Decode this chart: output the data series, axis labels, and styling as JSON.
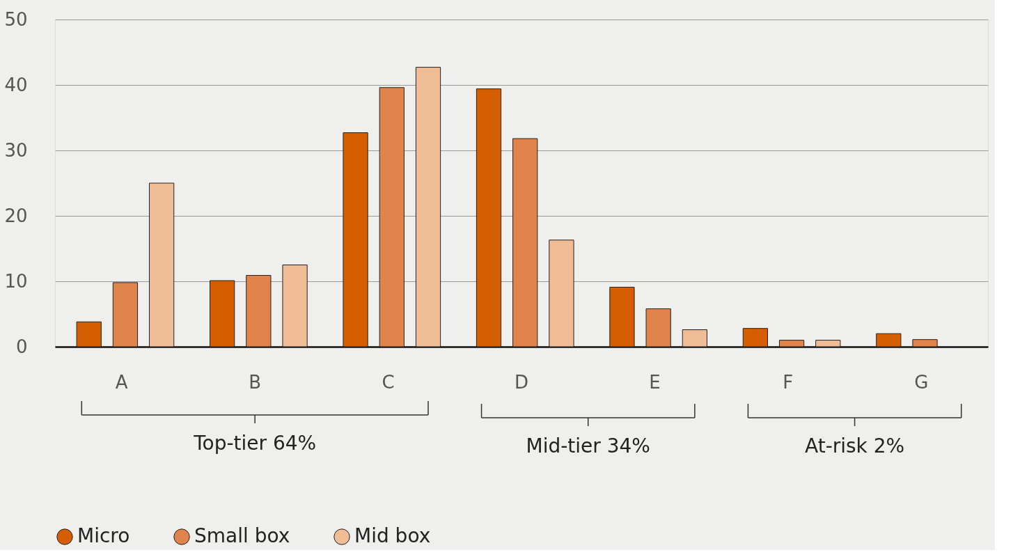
{
  "chart_data": {
    "type": "bar",
    "categories": [
      "A",
      "B",
      "C",
      "D",
      "E",
      "F",
      "G"
    ],
    "series": [
      {
        "name": "Micro",
        "color": "#d55e00",
        "values": [
          3.8,
          10.1,
          32.7,
          39.4,
          9.1,
          2.8,
          2.0
        ]
      },
      {
        "name": "Small box",
        "color": "#e0844b",
        "values": [
          9.8,
          10.9,
          39.6,
          31.8,
          5.8,
          1.0,
          1.1
        ]
      },
      {
        "name": "Mid box",
        "color": "#efbc96",
        "values": [
          25.0,
          12.5,
          42.7,
          16.3,
          2.6,
          1.0,
          null
        ]
      }
    ],
    "ylim": [
      0,
      50
    ],
    "yticks": [
      0,
      10,
      20,
      30,
      40,
      50
    ],
    "grid": "y",
    "legend": "bottom",
    "annotations": [
      "Top-tier 64%",
      "Mid-tier 34%",
      "At-risk 2%"
    ]
  }
}
